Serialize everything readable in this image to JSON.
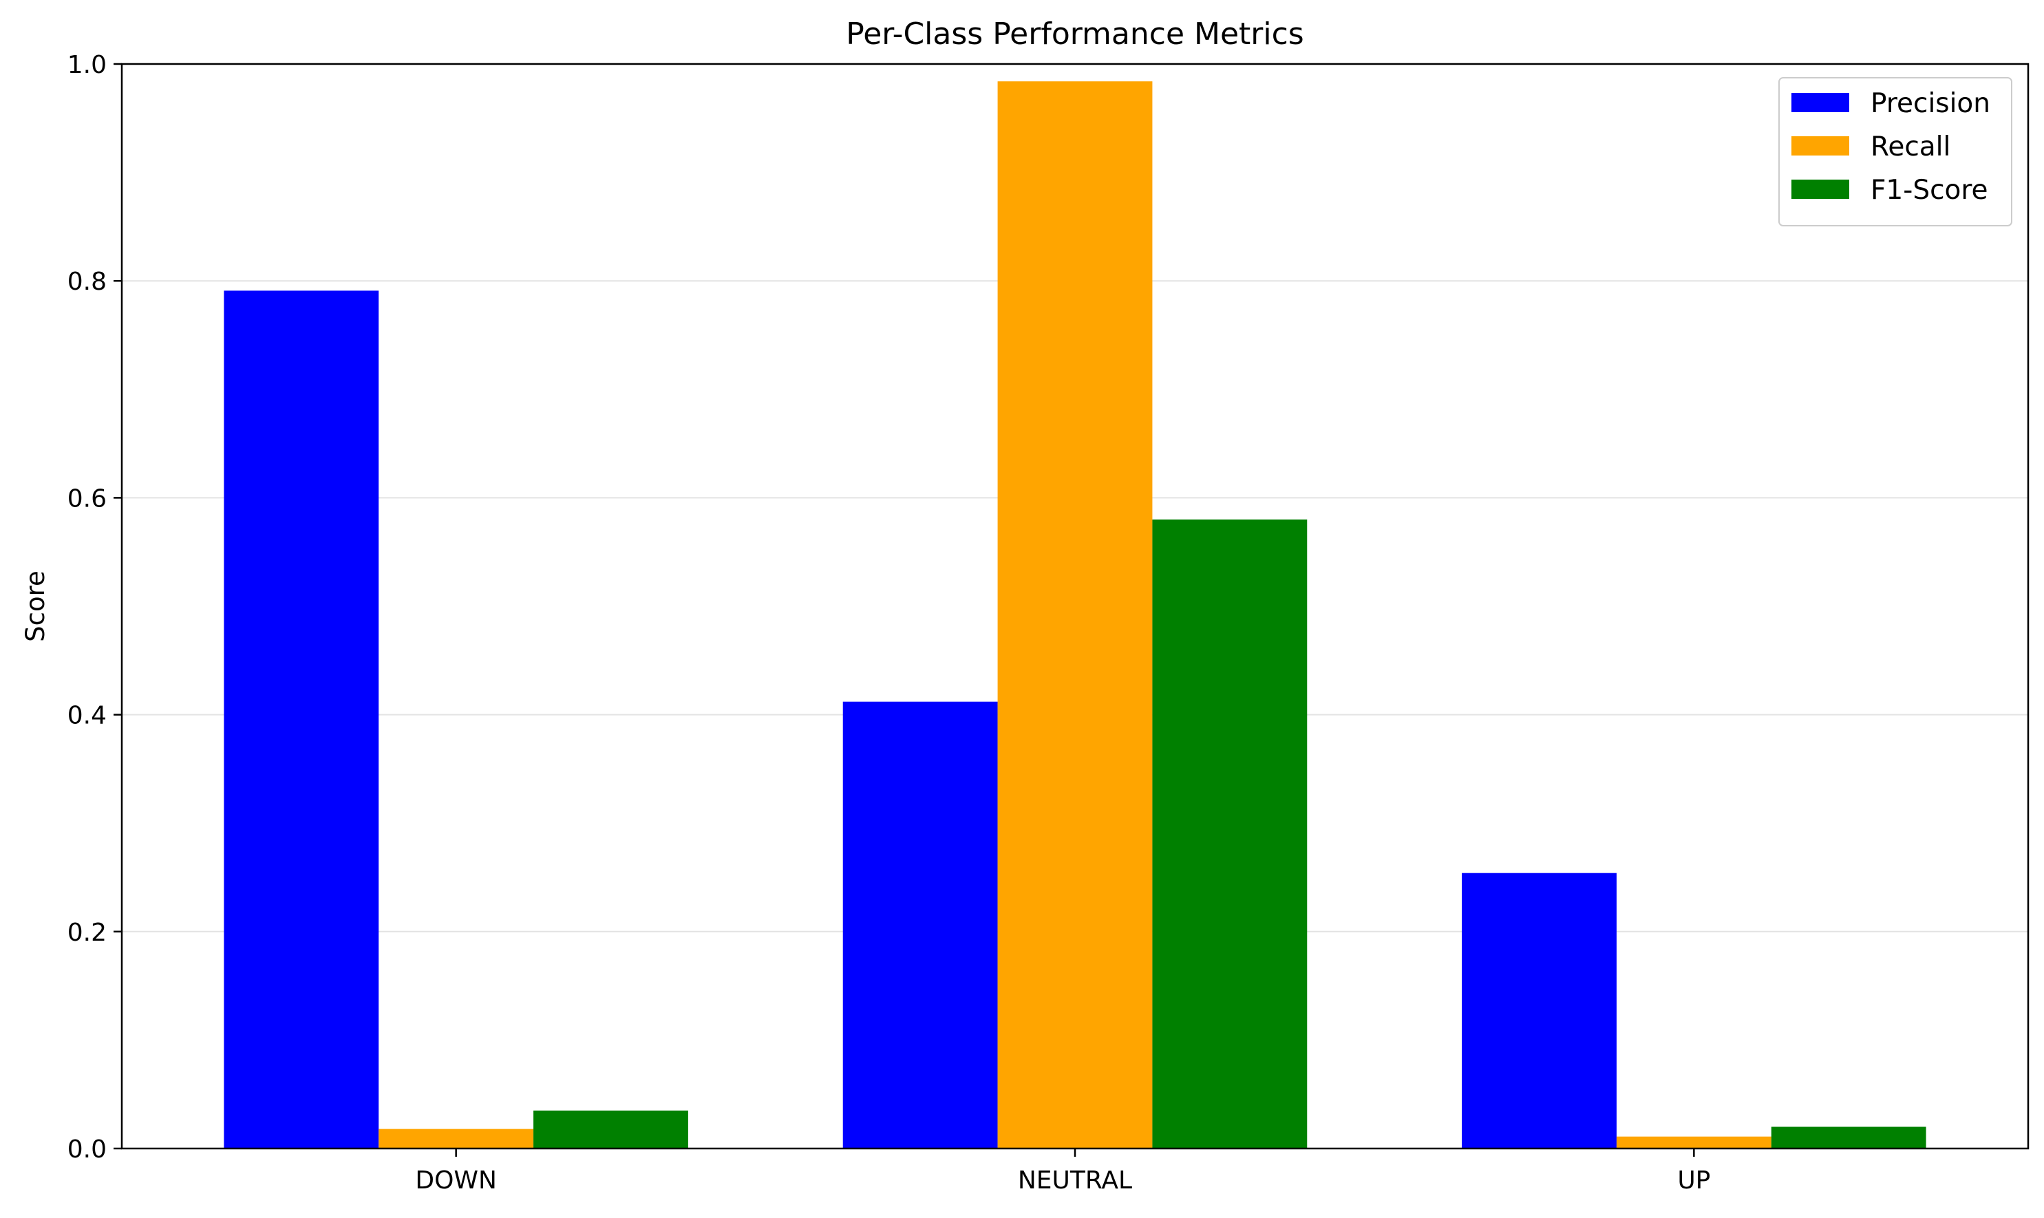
{
  "chart_data": {
    "type": "bar",
    "title": "Per-Class Performance Metrics",
    "xlabel": "",
    "ylabel": "Score",
    "categories": [
      "DOWN",
      "NEUTRAL",
      "UP"
    ],
    "series": [
      {
        "name": "Precision",
        "color": "#0000ff",
        "values": [
          0.791,
          0.412,
          0.254
        ]
      },
      {
        "name": "Recall",
        "color": "#ffa500",
        "values": [
          0.018,
          0.984,
          0.011
        ]
      },
      {
        "name": "F1-Score",
        "color": "#008000",
        "values": [
          0.035,
          0.58,
          0.02
        ]
      }
    ],
    "ylim": [
      0,
      1.0
    ],
    "yticks": [
      "0.0",
      "0.2",
      "0.4",
      "0.6",
      "0.8",
      "1.0"
    ],
    "grid": "y",
    "legend_position": "top-right"
  }
}
